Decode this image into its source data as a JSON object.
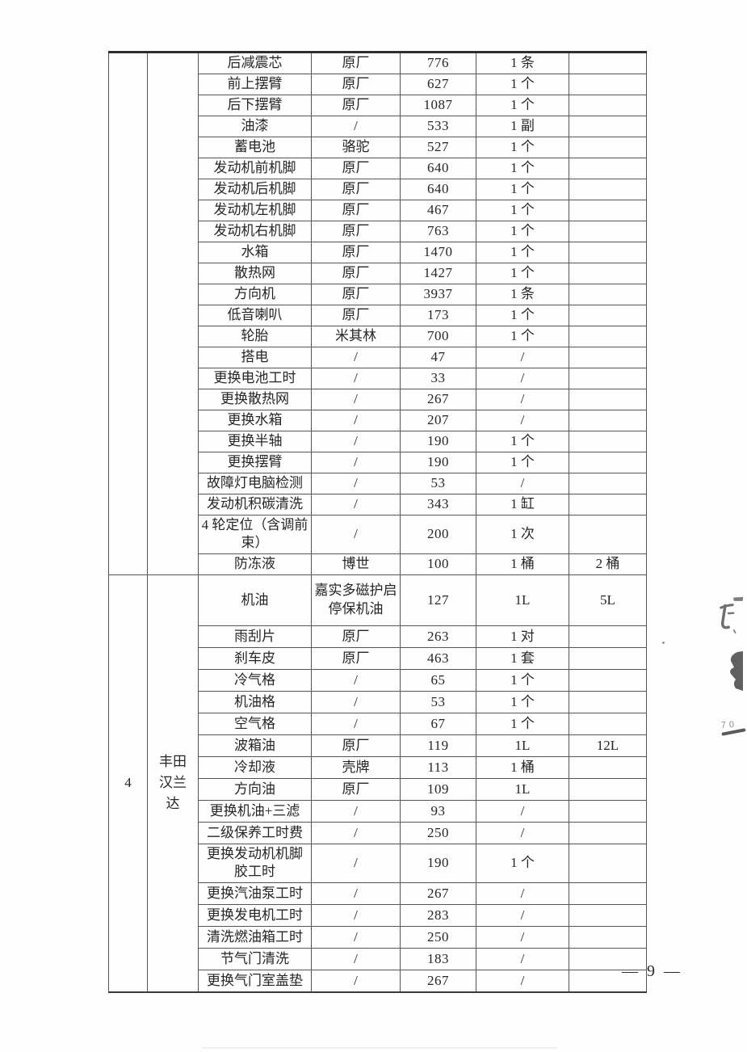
{
  "palette": {
    "paper": "#fefefe",
    "table_border": "#555555",
    "table_outer_border": "#2e2e2e",
    "text": "#262626"
  },
  "table": {
    "sections": [
      {
        "index_label": "",
        "vehicle_label": "",
        "rows": [
          [
            "后减震芯",
            "原厂",
            "776",
            "1 条",
            ""
          ],
          [
            "前上摆臂",
            "原厂",
            "627",
            "1 个",
            ""
          ],
          [
            "后下摆臂",
            "原厂",
            "1087",
            "1 个",
            ""
          ],
          [
            "油漆",
            "/",
            "533",
            "1 副",
            ""
          ],
          [
            "蓄电池",
            "骆驼",
            "527",
            "1 个",
            ""
          ],
          [
            "发动机前机脚",
            "原厂",
            "640",
            "1 个",
            ""
          ],
          [
            "发动机后机脚",
            "原厂",
            "640",
            "1 个",
            ""
          ],
          [
            "发动机左机脚",
            "原厂",
            "467",
            "1 个",
            ""
          ],
          [
            "发动机右机脚",
            "原厂",
            "763",
            "1 个",
            ""
          ],
          [
            "水箱",
            "原厂",
            "1470",
            "1 个",
            ""
          ],
          [
            "散热网",
            "原厂",
            "1427",
            "1 个",
            ""
          ],
          [
            "方向机",
            "原厂",
            "3937",
            "1 条",
            ""
          ],
          [
            "低音喇叭",
            "原厂",
            "173",
            "1 个",
            ""
          ],
          [
            "轮胎",
            "米其林",
            "700",
            "1 个",
            ""
          ],
          [
            "搭电",
            "/",
            "47",
            "/",
            ""
          ],
          [
            "更换电池工时",
            "/",
            "33",
            "/",
            ""
          ],
          [
            "更换散热网",
            "/",
            "267",
            "/",
            ""
          ],
          [
            "更换水箱",
            "/",
            "207",
            "/",
            ""
          ],
          [
            "更换半轴",
            "/",
            "190",
            "1 个",
            ""
          ],
          [
            "更换摆臂",
            "/",
            "190",
            "1 个",
            ""
          ],
          [
            "故障灯电脑检测",
            "/",
            "53",
            "/",
            ""
          ],
          [
            "发动机积碳清洗",
            "/",
            "343",
            "1 缸",
            ""
          ],
          [
            "4 轮定位（含调前束）",
            "/",
            "200",
            "1 次",
            ""
          ],
          [
            "防冻液",
            "博世",
            "100",
            "1 桶",
            "2 桶"
          ]
        ]
      },
      {
        "index_label": "4",
        "vehicle_label": "丰田汉兰达",
        "rows": [
          [
            "机油",
            "嘉实多磁护启停保机油",
            "127",
            "1L",
            "5L"
          ],
          [
            "雨刮片",
            "原厂",
            "263",
            "1 对",
            ""
          ],
          [
            "刹车皮",
            "原厂",
            "463",
            "1 套",
            ""
          ],
          [
            "冷气格",
            "/",
            "65",
            "1 个",
            ""
          ],
          [
            "机油格",
            "/",
            "53",
            "1 个",
            ""
          ],
          [
            "空气格",
            "/",
            "67",
            "1 个",
            ""
          ],
          [
            "波箱油",
            "原厂",
            "119",
            "1L",
            "12L"
          ],
          [
            "冷却液",
            "壳牌",
            "113",
            "1 桶",
            ""
          ],
          [
            "方向油",
            "原厂",
            "109",
            "1L",
            ""
          ],
          [
            "更换机油+三滤",
            "/",
            "93",
            "/",
            ""
          ],
          [
            "二级保养工时费",
            "/",
            "250",
            "/",
            ""
          ],
          [
            "更换发动机机脚胶工时",
            "/",
            "190",
            "1 个",
            ""
          ],
          [
            "更换汽油泵工时",
            "/",
            "267",
            "/",
            ""
          ],
          [
            "更换发电机工时",
            "/",
            "283",
            "/",
            ""
          ],
          [
            "清洗燃油箱工时",
            "/",
            "250",
            "/",
            ""
          ],
          [
            "节气门清洗",
            "/",
            "183",
            "/",
            ""
          ],
          [
            "更换气门室盖垫",
            "/",
            "267",
            "/",
            ""
          ]
        ]
      }
    ]
  },
  "footer": {
    "page_number": "— 9 —"
  },
  "artifacts": {
    "handwritten_number": "70"
  }
}
